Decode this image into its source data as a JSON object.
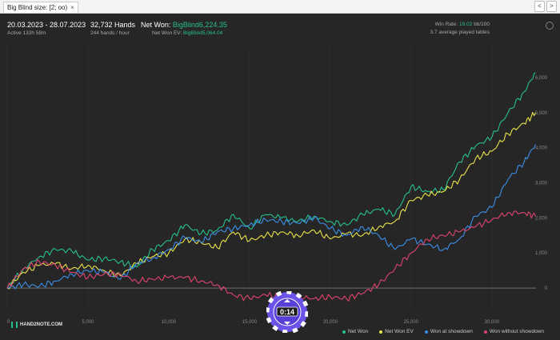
{
  "window": {
    "tab_label": "Big Blind size: [2; oo)",
    "tab_close": "×",
    "nav_back": "<",
    "nav_forward": ">"
  },
  "header": {
    "date_range": "20.03.2023 - 28.07.2023",
    "active": "Active 133h 58m",
    "hands": "32,732 Hands",
    "hands_rate": "244 hands / hour",
    "net_won_label": "Net Won:",
    "net_won_value": "BigBlind6,224.35",
    "net_won_ev_label": "Net Won  EV:",
    "net_won_ev_value": "BigBlind5,064.04",
    "win_rate_label": "Win Rate:",
    "win_rate_value": "19.02",
    "win_rate_unit": "bb/100",
    "avg_tables": "3.7 average played tables",
    "settings_icon": "gear-icon"
  },
  "logo_text": "HAND2NOTE.COM",
  "chip_badge": "0:14",
  "chart_data": {
    "type": "line",
    "xlim": [
      0,
      32732
    ],
    "ylim": [
      -500,
      6800
    ],
    "x_ticks": [
      "0",
      "5,000",
      "10,000",
      "15,000",
      "20,000",
      "25,000",
      "30,000"
    ],
    "x_tick_values": [
      0,
      5000,
      10000,
      15000,
      20000,
      25000,
      30000
    ],
    "y_ticks": [
      "0",
      "1,000",
      "2,000",
      "3,000",
      "4,000",
      "5,000",
      "6,000"
    ],
    "y_tick_values": [
      0,
      1000,
      2000,
      3000,
      4000,
      5000,
      6000
    ],
    "grid": "vertical",
    "legend_position": "bottom-right",
    "series": [
      {
        "name": "Net Won",
        "color": "#27c08a",
        "x": [
          0,
          1000,
          2000,
          3000,
          4000,
          5000,
          6000,
          7000,
          8000,
          9000,
          10000,
          11000,
          12000,
          13000,
          14000,
          15000,
          16000,
          17000,
          18000,
          19000,
          20000,
          21000,
          22000,
          23000,
          24000,
          25000,
          26000,
          27000,
          28000,
          29000,
          30000,
          31000,
          32000,
          32700
        ],
        "y": [
          0,
          550,
          900,
          1100,
          1050,
          800,
          850,
          750,
          600,
          1100,
          1350,
          1800,
          1550,
          1650,
          2100,
          1700,
          2100,
          2000,
          1900,
          2050,
          1900,
          1800,
          2100,
          2250,
          2100,
          2900,
          2750,
          2800,
          3600,
          4050,
          4300,
          5000,
          5600,
          6150
        ]
      },
      {
        "name": "Net Won  EV",
        "color": "#e9e24a",
        "x": [
          0,
          1000,
          2000,
          3000,
          4000,
          5000,
          6000,
          7000,
          8000,
          9000,
          10000,
          11000,
          12000,
          13000,
          14000,
          15000,
          16000,
          17000,
          18000,
          19000,
          20000,
          21000,
          22000,
          23000,
          24000,
          25000,
          26000,
          27000,
          28000,
          29000,
          30000,
          31000,
          32000,
          32700
        ],
        "y": [
          0,
          450,
          650,
          700,
          550,
          650,
          500,
          350,
          700,
          900,
          1000,
          1400,
          1300,
          1150,
          1600,
          1350,
          1500,
          1600,
          1500,
          1650,
          1400,
          1550,
          1500,
          1750,
          1900,
          2500,
          2650,
          2750,
          3100,
          3700,
          3900,
          4400,
          4700,
          5000
        ]
      },
      {
        "name": "Won at showdown",
        "color": "#3b8ee8",
        "x": [
          0,
          1000,
          2000,
          3000,
          4000,
          5000,
          6000,
          7000,
          8000,
          9000,
          10000,
          11000,
          12000,
          13000,
          14000,
          15000,
          16000,
          17000,
          18000,
          19000,
          20000,
          21000,
          22000,
          23000,
          24000,
          25000,
          26000,
          27000,
          28000,
          29000,
          30000,
          31000,
          32000,
          32700
        ],
        "y": [
          0,
          100,
          50,
          200,
          400,
          500,
          450,
          250,
          700,
          850,
          1100,
          1450,
          1300,
          1600,
          1700,
          1800,
          1950,
          1900,
          1850,
          2000,
          1700,
          1500,
          1750,
          1500,
          1100,
          1400,
          1250,
          1100,
          1400,
          2050,
          2300,
          3100,
          3600,
          4100
        ]
      },
      {
        "name": "Won without showdown",
        "color": "#e0436e",
        "x": [
          0,
          1000,
          2000,
          3000,
          4000,
          5000,
          6000,
          7000,
          8000,
          9000,
          10000,
          11000,
          12000,
          13000,
          14000,
          15000,
          16000,
          17000,
          18000,
          19000,
          20000,
          21000,
          22000,
          23000,
          24000,
          25000,
          26000,
          27000,
          28000,
          29000,
          30000,
          31000,
          32000,
          32700
        ],
        "y": [
          0,
          550,
          750,
          650,
          450,
          300,
          400,
          400,
          200,
          250,
          300,
          300,
          200,
          100,
          -200,
          -300,
          -200,
          -250,
          -250,
          -300,
          -250,
          -300,
          -150,
          100,
          550,
          1000,
          1400,
          1500,
          1600,
          1750,
          1950,
          2150,
          2150,
          2050
        ]
      }
    ]
  }
}
